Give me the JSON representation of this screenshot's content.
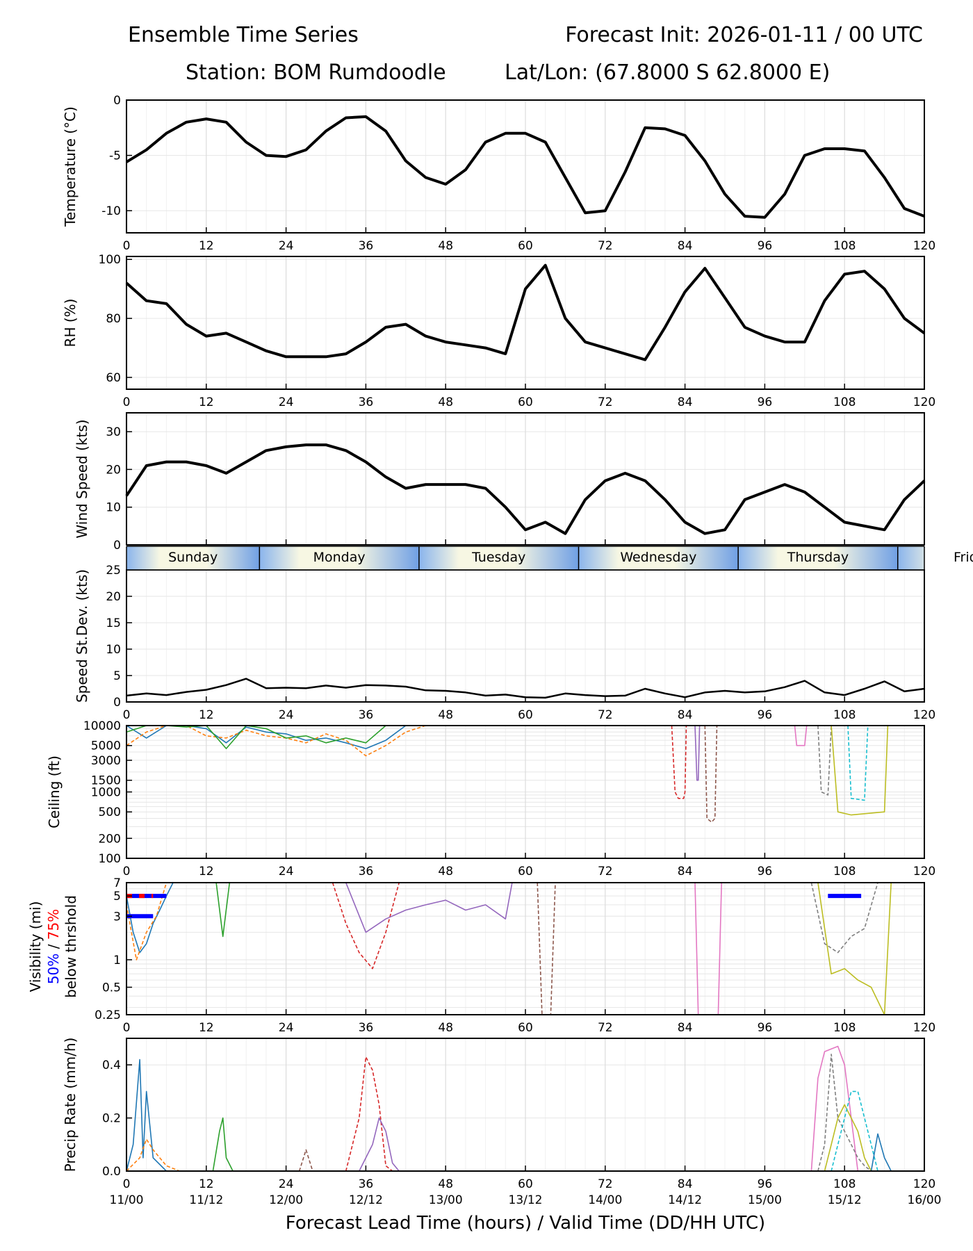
{
  "header": {
    "title": "Ensemble Time Series",
    "init": "Forecast Init: 2026-01-11 / 00 UTC",
    "station": "Station: BOM Rumdoodle",
    "latlon": "Lat/Lon: (67.8000 S 62.8000 E)"
  },
  "xaxis": {
    "range": [
      0,
      120
    ],
    "ticks": [
      0,
      12,
      24,
      36,
      48,
      60,
      72,
      84,
      96,
      108,
      120
    ],
    "valid_times": [
      "11/00",
      "11/12",
      "12/00",
      "12/12",
      "13/00",
      "13/12",
      "14/00",
      "14/12",
      "15/00",
      "15/12",
      "16/00"
    ],
    "label": "Forecast Lead Time (hours) / Valid Time (DD/HH UTC)"
  },
  "day_strip": {
    "days": [
      {
        "name": "Sunday",
        "start": 0,
        "end": 20
      },
      {
        "name": "Monday",
        "start": 20,
        "end": 44
      },
      {
        "name": "Tuesday",
        "start": 44,
        "end": 68
      },
      {
        "name": "Wednesday",
        "start": 68,
        "end": 92
      },
      {
        "name": "Thursday",
        "start": 92,
        "end": 116
      },
      {
        "name": "Friday",
        "start": 116,
        "end": 140
      }
    ]
  },
  "vis_label": {
    "line1": "Visibility (mi)",
    "p50": "50%",
    "sep": " / ",
    "p75": "75%",
    "line3": "below thrshold",
    "color_50": "#0000ff",
    "color_75": "#ff0000"
  },
  "chart_data": [
    {
      "id": "temperature",
      "type": "line",
      "ylabel": "Temperature (°C)",
      "ylim": [
        -12,
        0
      ],
      "yticks": [
        0,
        -5,
        -10
      ],
      "x": [
        0,
        3,
        6,
        9,
        12,
        15,
        18,
        21,
        24,
        27,
        30,
        33,
        36,
        39,
        42,
        45,
        48,
        51,
        54,
        57,
        60,
        63,
        66,
        69,
        72,
        75,
        78,
        81,
        84,
        87,
        90,
        93,
        96,
        99,
        102,
        105,
        108,
        111,
        114,
        117,
        120
      ],
      "series": [
        {
          "name": "ensemble mean",
          "values": [
            -5.6,
            -4.5,
            -3.0,
            -2.0,
            -1.7,
            -2.0,
            -3.8,
            -5.0,
            -5.1,
            -4.5,
            -2.8,
            -1.6,
            -1.5,
            -2.8,
            -5.5,
            -7.0,
            -7.6,
            -6.3,
            -3.8,
            -3.0,
            -3.0,
            -3.8,
            -7.0,
            -10.2,
            -10.0,
            -6.5,
            -2.5,
            -2.6,
            -3.2,
            -5.5,
            -8.5,
            -10.5,
            -10.6,
            -8.5,
            -5.0,
            -4.4,
            -4.4,
            -4.6,
            -7.0,
            -9.8,
            -10.5
          ]
        }
      ]
    },
    {
      "id": "rh",
      "type": "line",
      "ylabel": "RH (%)",
      "ylim": [
        56,
        101
      ],
      "yticks": [
        60,
        80,
        100
      ],
      "x": [
        0,
        3,
        6,
        9,
        12,
        15,
        18,
        21,
        24,
        27,
        30,
        33,
        36,
        39,
        42,
        45,
        48,
        51,
        54,
        57,
        60,
        63,
        66,
        69,
        72,
        75,
        78,
        81,
        84,
        87,
        90,
        93,
        96,
        99,
        102,
        105,
        108,
        111,
        114,
        117,
        120
      ],
      "series": [
        {
          "name": "ensemble mean",
          "values": [
            92,
            86,
            85,
            78,
            74,
            75,
            72,
            69,
            67,
            67,
            67,
            68,
            72,
            77,
            78,
            74,
            72,
            71,
            70,
            68,
            90,
            98,
            80,
            72,
            70,
            68,
            66,
            77,
            89,
            97,
            87,
            77,
            74,
            72,
            72,
            86,
            95,
            96,
            90,
            80,
            75
          ]
        }
      ]
    },
    {
      "id": "wind",
      "type": "line",
      "ylabel": "Wind Speed (kts)",
      "ylim": [
        0,
        35
      ],
      "yticks": [
        0,
        10,
        20,
        30
      ],
      "x": [
        0,
        3,
        6,
        9,
        12,
        15,
        18,
        21,
        24,
        27,
        30,
        33,
        36,
        39,
        42,
        45,
        48,
        51,
        54,
        57,
        60,
        63,
        66,
        69,
        72,
        75,
        78,
        81,
        84,
        87,
        90,
        93,
        96,
        99,
        102,
        105,
        108,
        111,
        114,
        117,
        120
      ],
      "series": [
        {
          "name": "ensemble mean",
          "values": [
            13,
            21,
            22,
            22,
            21,
            19,
            22,
            25,
            26,
            26.5,
            26.5,
            25,
            22,
            18,
            15,
            16,
            16,
            16,
            15,
            10,
            4,
            6,
            3,
            12,
            17,
            19,
            17,
            12,
            6,
            3,
            4,
            12,
            14,
            16,
            14,
            10,
            6,
            5,
            4,
            12,
            17
          ]
        }
      ]
    },
    {
      "id": "speed_sd",
      "type": "line",
      "ylabel": "Speed St.Dev. (kts)",
      "ylim": [
        0,
        25
      ],
      "yticks": [
        0,
        5,
        10,
        15,
        20,
        25
      ],
      "x": [
        0,
        3,
        6,
        9,
        12,
        15,
        18,
        21,
        24,
        27,
        30,
        33,
        36,
        39,
        42,
        45,
        48,
        51,
        54,
        57,
        60,
        63,
        66,
        69,
        72,
        75,
        78,
        81,
        84,
        87,
        90,
        93,
        96,
        99,
        102,
        105,
        108,
        111,
        114,
        117,
        120
      ],
      "series": [
        {
          "name": "std dev",
          "values": [
            1.2,
            1.6,
            1.3,
            1.9,
            2.3,
            3.2,
            4.4,
            2.6,
            2.7,
            2.6,
            3.1,
            2.7,
            3.2,
            3.1,
            2.9,
            2.2,
            2.1,
            1.8,
            1.2,
            1.4,
            0.9,
            0.8,
            1.6,
            1.3,
            1.1,
            1.2,
            2.5,
            1.6,
            0.9,
            1.8,
            2.1,
            1.8,
            2.0,
            2.8,
            4.0,
            1.8,
            1.3,
            2.5,
            3.9,
            2.0,
            2.5
          ]
        }
      ]
    },
    {
      "id": "ceiling",
      "type": "line",
      "ylabel": "Ceiling (ft)",
      "scale": "log",
      "ylim": [
        100,
        10000
      ],
      "yticks": [
        10000,
        5000,
        3000,
        1500,
        1000,
        500,
        200,
        100
      ],
      "series": [
        {
          "name": "m1",
          "x": [
            0,
            3,
            6,
            9,
            12,
            15,
            18,
            21,
            24,
            27,
            30,
            33,
            36,
            39,
            42
          ],
          "values": [
            10000,
            6500,
            10000,
            10000,
            9000,
            5500,
            9500,
            8000,
            7500,
            6000,
            6500,
            5500,
            4500,
            6000,
            10000
          ]
        },
        {
          "name": "m2",
          "x": [
            0,
            3,
            6,
            9,
            12,
            15,
            18,
            21,
            24,
            27,
            30,
            33,
            36,
            39,
            42,
            45
          ],
          "values": [
            5000,
            8000,
            10000,
            10000,
            7000,
            6500,
            8500,
            7000,
            6500,
            5500,
            7500,
            6000,
            3500,
            5000,
            8000,
            10000
          ]
        },
        {
          "name": "m3",
          "x": [
            0,
            3,
            6,
            9,
            12,
            15,
            18,
            21,
            24,
            27,
            30,
            33,
            36,
            39
          ],
          "values": [
            8000,
            10000,
            10000,
            9500,
            10000,
            4500,
            10000,
            9000,
            6500,
            7000,
            5500,
            6500,
            5500,
            10000
          ]
        },
        {
          "name": "m4",
          "x": [
            82,
            82.5,
            83,
            83.8,
            84,
            84.2
          ],
          "values": [
            10000,
            1000,
            800,
            800,
            1000,
            10000
          ]
        },
        {
          "name": "m5",
          "x": [
            85.5,
            85.8,
            86,
            86.2
          ],
          "values": [
            10000,
            1500,
            1500,
            10000
          ]
        },
        {
          "name": "m6",
          "x": [
            87,
            87.3,
            88,
            88.5,
            88.8
          ],
          "values": [
            10000,
            400,
            350,
            400,
            10000
          ]
        },
        {
          "name": "m7",
          "x": [
            100.5,
            100.8,
            102,
            102.3
          ],
          "values": [
            10000,
            5000,
            5000,
            10000
          ]
        },
        {
          "name": "m8",
          "x": [
            104,
            104.5,
            105.5,
            106
          ],
          "values": [
            10000,
            1000,
            900,
            10000
          ]
        },
        {
          "name": "m9",
          "x": [
            106,
            107,
            109,
            112,
            114,
            114.5
          ],
          "values": [
            10000,
            500,
            450,
            480,
            500,
            10000
          ]
        },
        {
          "name": "m10",
          "x": [
            108.5,
            109,
            111,
            111.5
          ],
          "values": [
            10000,
            800,
            750,
            10000
          ]
        }
      ]
    },
    {
      "id": "visibility",
      "type": "line",
      "scale": "log",
      "ylim": [
        0.25,
        7
      ],
      "yticks": [
        7,
        5,
        3,
        1,
        0.5,
        0.25
      ],
      "series": [
        {
          "name": "m1",
          "x": [
            0,
            1,
            2,
            3,
            4,
            5,
            6,
            7
          ],
          "values": [
            5,
            2,
            1.2,
            1.5,
            2.5,
            3.5,
            5,
            7
          ]
        },
        {
          "name": "m2",
          "x": [
            0,
            1.5,
            3,
            4.5,
            6
          ],
          "values": [
            4,
            1,
            2,
            3,
            7
          ]
        },
        {
          "name": "m3",
          "x": [
            13.5,
            14.5,
            15.5
          ],
          "values": [
            7,
            1.8,
            7
          ]
        },
        {
          "name": "m4",
          "x": [
            31,
            33,
            35,
            37,
            39,
            41
          ],
          "values": [
            7,
            2.5,
            1.2,
            0.8,
            2,
            7
          ]
        },
        {
          "name": "m5",
          "x": [
            33,
            36,
            39,
            42,
            45,
            48,
            51,
            54,
            57,
            58
          ],
          "values": [
            7,
            2,
            2.8,
            3.5,
            4,
            4.5,
            3.5,
            4,
            2.8,
            7
          ]
        },
        {
          "name": "m6",
          "x": [
            61.8,
            62.5,
            63.2,
            63.8,
            64.5
          ],
          "values": [
            7,
            0.25,
            0.25,
            0.25,
            7
          ]
        },
        {
          "name": "m7",
          "x": [
            85.5,
            86,
            87,
            88,
            89,
            89.5
          ],
          "values": [
            7,
            0.25,
            0.25,
            0.25,
            0.25,
            7
          ]
        },
        {
          "name": "m8",
          "x": [
            103,
            105,
            107,
            109,
            111,
            113
          ],
          "values": [
            7,
            1.5,
            1.2,
            1.8,
            2.2,
            7
          ]
        },
        {
          "name": "m9",
          "x": [
            104,
            106,
            108,
            110,
            112,
            114,
            115
          ],
          "values": [
            7,
            0.7,
            0.8,
            0.6,
            0.5,
            0.25,
            7
          ]
        }
      ],
      "thresholds": [
        {
          "name": "50% below 5 mi",
          "color": "#0000ff",
          "x": [
            0,
            6
          ],
          "value": 5
        },
        {
          "name": "75% below 5 mi",
          "color": "#ff0000",
          "x": [
            0,
            4
          ],
          "value": 5
        },
        {
          "name": "50% below 3 mi",
          "color": "#0000ff",
          "x": [
            0,
            4
          ],
          "value": 3
        },
        {
          "name": "50% below 5 mi (day 5)",
          "color": "#0000ff",
          "x": [
            105.5,
            110.5
          ],
          "value": 5
        }
      ]
    },
    {
      "id": "precip",
      "type": "line",
      "ylabel": "Precip Rate (mm/h)",
      "ylim": [
        0,
        0.5
      ],
      "yticks": [
        0.0,
        0.2,
        0.4
      ],
      "series": [
        {
          "name": "m1",
          "x": [
            0,
            1,
            2,
            2.5,
            3,
            4,
            6
          ],
          "values": [
            0,
            0.1,
            0.42,
            0.05,
            0.3,
            0.05,
            0
          ]
        },
        {
          "name": "m2",
          "x": [
            0,
            2,
            3,
            4,
            6,
            8
          ],
          "values": [
            0,
            0.05,
            0.12,
            0.08,
            0.02,
            0
          ]
        },
        {
          "name": "m3",
          "x": [
            13,
            14,
            14.5,
            15,
            16
          ],
          "values": [
            0,
            0.15,
            0.2,
            0.05,
            0
          ]
        },
        {
          "name": "m4",
          "x": [
            33,
            35,
            36,
            37,
            38,
            39,
            40
          ],
          "values": [
            0,
            0.2,
            0.43,
            0.38,
            0.25,
            0.02,
            0
          ]
        },
        {
          "name": "m5",
          "x": [
            35,
            37,
            38,
            39,
            40,
            41
          ],
          "values": [
            0,
            0.1,
            0.2,
            0.15,
            0.03,
            0
          ]
        },
        {
          "name": "m6",
          "x": [
            26,
            27,
            28
          ],
          "values": [
            0,
            0.08,
            0
          ]
        },
        {
          "name": "m7",
          "x": [
            103,
            104,
            105,
            106,
            107,
            108,
            109,
            110
          ],
          "values": [
            0,
            0.35,
            0.45,
            0.46,
            0.47,
            0.4,
            0.2,
            0
          ]
        },
        {
          "name": "m8",
          "x": [
            104,
            105,
            106,
            107,
            108,
            109,
            110,
            111,
            112
          ],
          "values": [
            0,
            0.1,
            0.44,
            0.2,
            0.15,
            0.1,
            0.05,
            0.02,
            0
          ]
        },
        {
          "name": "m9",
          "x": [
            105,
            106,
            107,
            108,
            109,
            110,
            111,
            112
          ],
          "values": [
            0,
            0.1,
            0.2,
            0.25,
            0.2,
            0.15,
            0.05,
            0
          ]
        },
        {
          "name": "m10",
          "x": [
            106,
            107,
            108,
            109,
            110,
            111,
            112,
            113
          ],
          "values": [
            0,
            0.1,
            0.2,
            0.3,
            0.3,
            0.2,
            0.1,
            0
          ]
        },
        {
          "name": "m11",
          "x": [
            112,
            113,
            114,
            115
          ],
          "values": [
            0,
            0.14,
            0.05,
            0
          ]
        }
      ]
    }
  ]
}
